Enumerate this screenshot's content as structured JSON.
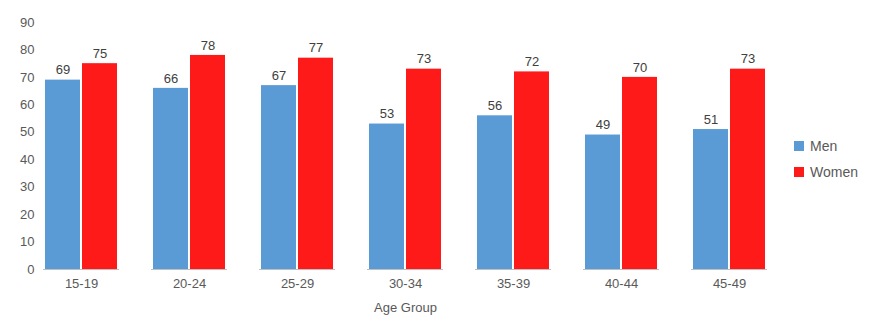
{
  "chart_data": {
    "type": "bar",
    "x_label": "Age Group",
    "categories": [
      "15-19",
      "20-24",
      "25-29",
      "30-34",
      "35-39",
      "40-44",
      "45-49"
    ],
    "series": [
      {
        "name": "Men",
        "color": "#5b9bd5",
        "values": [
          69,
          66,
          67,
          53,
          56,
          49,
          51
        ]
      },
      {
        "name": "Women",
        "color": "#ff1a1a",
        "values": [
          75,
          78,
          77,
          73,
          72,
          70,
          73
        ]
      }
    ],
    "ylim": [
      0,
      90
    ],
    "yticks": [
      0,
      10,
      20,
      30,
      40,
      50,
      60,
      70,
      80,
      90
    ],
    "grid": false,
    "legend": "right",
    "data_labels": true
  }
}
